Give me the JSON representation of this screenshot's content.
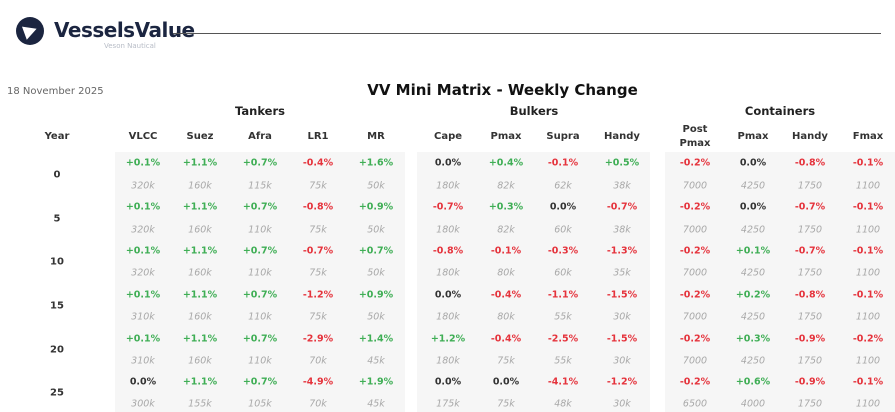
{
  "header": {
    "brand": "VesselsValue",
    "subbrand": "Veson Nautical",
    "date": "18 November 2025",
    "title": "VV Mini Matrix - Weekly Change"
  },
  "colors": {
    "positive": "#3fae55",
    "negative": "#e5333c",
    "neutral": "#333333",
    "brand": "#1b2540"
  },
  "year_label": "Year",
  "years": [
    "0",
    "5",
    "10",
    "15",
    "20",
    "25"
  ],
  "groups": [
    {
      "name": "Tankers",
      "columns": [
        {
          "label": "VLCC",
          "changes": [
            "+0.1%",
            "+0.1%",
            "+0.1%",
            "+0.1%",
            "+0.1%",
            "0.0%"
          ],
          "sizes": [
            "320k",
            "320k",
            "320k",
            "310k",
            "310k",
            "300k"
          ]
        },
        {
          "label": "Suez",
          "changes": [
            "+1.1%",
            "+1.1%",
            "+1.1%",
            "+1.1%",
            "+1.1%",
            "+1.1%"
          ],
          "sizes": [
            "160k",
            "160k",
            "160k",
            "160k",
            "160k",
            "155k"
          ]
        },
        {
          "label": "Afra",
          "changes": [
            "+0.7%",
            "+0.7%",
            "+0.7%",
            "+0.7%",
            "+0.7%",
            "+0.7%"
          ],
          "sizes": [
            "115k",
            "110k",
            "110k",
            "110k",
            "110k",
            "105k"
          ]
        },
        {
          "label": "LR1",
          "changes": [
            "-0.4%",
            "-0.8%",
            "-0.7%",
            "-1.2%",
            "-2.9%",
            "-4.9%"
          ],
          "sizes": [
            "75k",
            "75k",
            "75k",
            "75k",
            "70k",
            "70k"
          ]
        },
        {
          "label": "MR",
          "changes": [
            "+1.6%",
            "+0.9%",
            "+0.7%",
            "+0.9%",
            "+1.4%",
            "+1.9%"
          ],
          "sizes": [
            "50k",
            "50k",
            "50k",
            "50k",
            "45k",
            "45k"
          ]
        }
      ]
    },
    {
      "name": "Bulkers",
      "columns": [
        {
          "label": "Cape",
          "changes": [
            "0.0%",
            "-0.7%",
            "-0.8%",
            "0.0%",
            "+1.2%",
            "0.0%"
          ],
          "sizes": [
            "180k",
            "180k",
            "180k",
            "180k",
            "180k",
            "175k"
          ]
        },
        {
          "label": "Pmax",
          "changes": [
            "+0.4%",
            "+0.3%",
            "-0.1%",
            "-0.4%",
            "-0.4%",
            "0.0%"
          ],
          "sizes": [
            "82k",
            "82k",
            "80k",
            "80k",
            "75k",
            "75k"
          ]
        },
        {
          "label": "Supra",
          "changes": [
            "-0.1%",
            "0.0%",
            "-0.3%",
            "-1.1%",
            "-2.5%",
            "-4.1%"
          ],
          "sizes": [
            "62k",
            "60k",
            "60k",
            "55k",
            "55k",
            "48k"
          ]
        },
        {
          "label": "Handy",
          "changes": [
            "+0.5%",
            "-0.7%",
            "-1.3%",
            "-1.5%",
            "-1.5%",
            "-1.2%"
          ],
          "sizes": [
            "38k",
            "38k",
            "35k",
            "30k",
            "30k",
            "30k"
          ]
        }
      ]
    },
    {
      "name": "Containers",
      "columns": [
        {
          "label": "Post Pmax",
          "changes": [
            "-0.2%",
            "-0.2%",
            "-0.2%",
            "-0.2%",
            "-0.2%",
            "-0.2%"
          ],
          "sizes": [
            "7000",
            "7000",
            "7000",
            "7000",
            "7000",
            "6500"
          ]
        },
        {
          "label": "Pmax",
          "changes": [
            "0.0%",
            "0.0%",
            "+0.1%",
            "+0.2%",
            "+0.3%",
            "+0.6%"
          ],
          "sizes": [
            "4250",
            "4250",
            "4250",
            "4250",
            "4250",
            "4000"
          ]
        },
        {
          "label": "Handy",
          "changes": [
            "-0.8%",
            "-0.7%",
            "-0.7%",
            "-0.8%",
            "-0.9%",
            "-0.9%"
          ],
          "sizes": [
            "1750",
            "1750",
            "1750",
            "1750",
            "1750",
            "1750"
          ]
        },
        {
          "label": "Fmax",
          "changes": [
            "-0.1%",
            "-0.1%",
            "-0.1%",
            "-0.1%",
            "-0.2%",
            "-0.1%"
          ],
          "sizes": [
            "1100",
            "1100",
            "1100",
            "1100",
            "1100",
            "1100"
          ]
        }
      ]
    }
  ]
}
